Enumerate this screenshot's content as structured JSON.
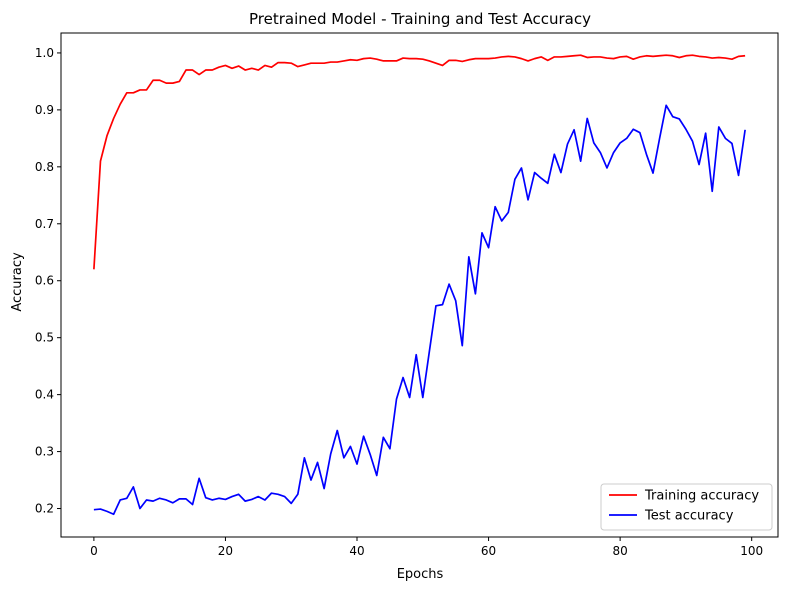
{
  "chart_data": {
    "type": "line",
    "title": "Pretrained Model - Training and Test Accuracy",
    "xlabel": "Epochs",
    "ylabel": "Accuracy",
    "xlim": [
      -5,
      104
    ],
    "ylim": [
      0.15,
      1.035
    ],
    "xticks": [
      0,
      20,
      40,
      60,
      80,
      100
    ],
    "yticks": [
      0.2,
      0.3,
      0.4,
      0.5,
      0.6,
      0.7,
      0.8,
      0.9,
      1.0
    ],
    "grid": false,
    "legend_position": "bottom-right",
    "series": [
      {
        "name": "Training accuracy",
        "color": "#ff0000",
        "values": [
          0.62,
          0.81,
          0.855,
          0.885,
          0.91,
          0.93,
          0.93,
          0.935,
          0.935,
          0.952,
          0.952,
          0.947,
          0.947,
          0.95,
          0.97,
          0.97,
          0.962,
          0.97,
          0.97,
          0.975,
          0.978,
          0.973,
          0.977,
          0.97,
          0.973,
          0.97,
          0.978,
          0.975,
          0.983,
          0.983,
          0.982,
          0.976,
          0.979,
          0.982,
          0.982,
          0.982,
          0.984,
          0.984,
          0.986,
          0.988,
          0.987,
          0.99,
          0.991,
          0.989,
          0.986,
          0.986,
          0.986,
          0.991,
          0.99,
          0.99,
          0.989,
          0.986,
          0.982,
          0.978,
          0.987,
          0.987,
          0.985,
          0.988,
          0.99,
          0.99,
          0.99,
          0.991,
          0.993,
          0.994,
          0.993,
          0.99,
          0.986,
          0.99,
          0.993,
          0.987,
          0.993,
          0.993,
          0.994,
          0.995,
          0.996,
          0.992,
          0.993,
          0.993,
          0.991,
          0.99,
          0.993,
          0.994,
          0.989,
          0.993,
          0.995,
          0.994,
          0.995,
          0.996,
          0.995,
          0.992,
          0.995,
          0.996,
          0.994,
          0.993,
          0.991,
          0.992,
          0.991,
          0.989,
          0.994,
          0.995
        ]
      },
      {
        "name": "Test accuracy",
        "color": "#0000ff",
        "values": [
          0.198,
          0.199,
          0.195,
          0.19,
          0.215,
          0.218,
          0.238,
          0.2,
          0.215,
          0.213,
          0.218,
          0.215,
          0.21,
          0.217,
          0.217,
          0.207,
          0.253,
          0.219,
          0.215,
          0.218,
          0.216,
          0.221,
          0.225,
          0.213,
          0.216,
          0.221,
          0.215,
          0.227,
          0.225,
          0.221,
          0.209,
          0.225,
          0.289,
          0.25,
          0.281,
          0.235,
          0.296,
          0.337,
          0.289,
          0.309,
          0.278,
          0.327,
          0.295,
          0.258,
          0.325,
          0.305,
          0.392,
          0.43,
          0.395,
          0.47,
          0.395,
          0.476,
          0.556,
          0.558,
          0.594,
          0.565,
          0.486,
          0.642,
          0.577,
          0.684,
          0.658,
          0.73,
          0.705,
          0.72,
          0.778,
          0.798,
          0.742,
          0.79,
          0.78,
          0.771,
          0.822,
          0.79,
          0.84,
          0.865,
          0.81,
          0.885,
          0.842,
          0.825,
          0.798,
          0.825,
          0.842,
          0.85,
          0.866,
          0.86,
          0.822,
          0.789,
          0.85,
          0.908,
          0.888,
          0.884,
          0.866,
          0.845,
          0.804,
          0.859,
          0.757,
          0.87,
          0.85,
          0.841,
          0.785,
          0.865
        ]
      }
    ]
  }
}
